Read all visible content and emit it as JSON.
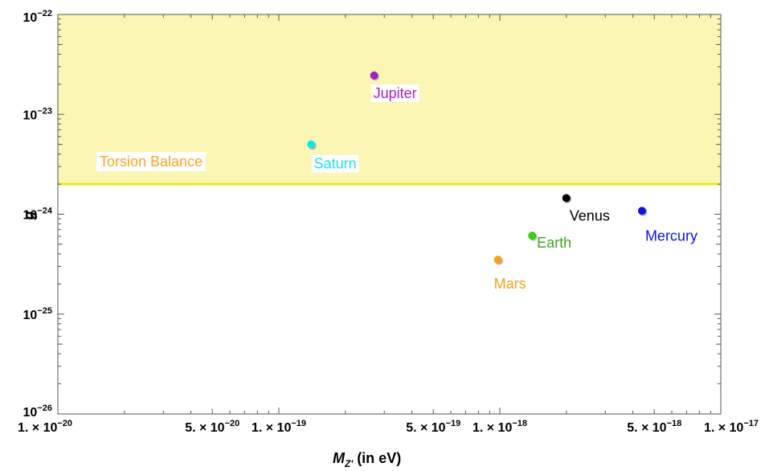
{
  "chart_data": {
    "type": "scatter",
    "title": "",
    "xlabel": "M_Z' (in eV)",
    "xlabel_parts": {
      "main": "M",
      "sub": "Z'",
      "rest": " (in eV)"
    },
    "ylabel": "g",
    "xscale": "log",
    "yscale": "log",
    "xlim": [
      1e-20,
      1e-17
    ],
    "ylim": [
      1e-26,
      1e-22
    ],
    "grid": false,
    "x_ticks": [
      {
        "value": 1e-20,
        "label": "1. × 10",
        "exp": "−20"
      },
      {
        "value": 5e-20,
        "label": "5. × 10",
        "exp": "−20"
      },
      {
        "value": 1e-19,
        "label": "1. × 10",
        "exp": "−19"
      },
      {
        "value": 5e-19,
        "label": "5. × 10",
        "exp": "−19"
      },
      {
        "value": 1e-18,
        "label": "1. × 10",
        "exp": "−18"
      },
      {
        "value": 5e-18,
        "label": "5. × 10",
        "exp": "−18"
      },
      {
        "value": 1e-17,
        "label": "1. × 10",
        "exp": "−17"
      }
    ],
    "y_ticks": [
      {
        "value": 1e-22,
        "label": "10",
        "exp": "−22"
      },
      {
        "value": 1e-23,
        "label": "10",
        "exp": "−23"
      },
      {
        "value": 1e-24,
        "label": "10",
        "exp": "−24"
      },
      {
        "value": 1e-25,
        "label": "10",
        "exp": "−25"
      },
      {
        "value": 1e-26,
        "label": "10",
        "exp": "−26"
      }
    ],
    "excluded_region": {
      "label": "Torsion Balance",
      "y_lower": 2e-24,
      "fill_color": "#fbf6b3",
      "line_color": "#f2e600",
      "label_color": "#f5a623"
    },
    "series": [
      {
        "name": "Jupiter",
        "x": 2.7e-19,
        "y": 2.45e-23,
        "color": "#a020c8"
      },
      {
        "name": "Saturn",
        "x": 1.4e-19,
        "y": 5e-24,
        "color": "#14e6e6"
      },
      {
        "name": "Venus",
        "x": 2e-18,
        "y": 1.45e-24,
        "color": "#000000"
      },
      {
        "name": "Mercury",
        "x": 4.4e-18,
        "y": 1.08e-24,
        "color": "#1010e0"
      },
      {
        "name": "Earth",
        "x": 1.4e-18,
        "y": 6.1e-25,
        "color": "#3ccc1a"
      },
      {
        "name": "Mars",
        "x": 9.8e-19,
        "y": 3.5e-25,
        "color": "#f5a01e"
      }
    ]
  }
}
